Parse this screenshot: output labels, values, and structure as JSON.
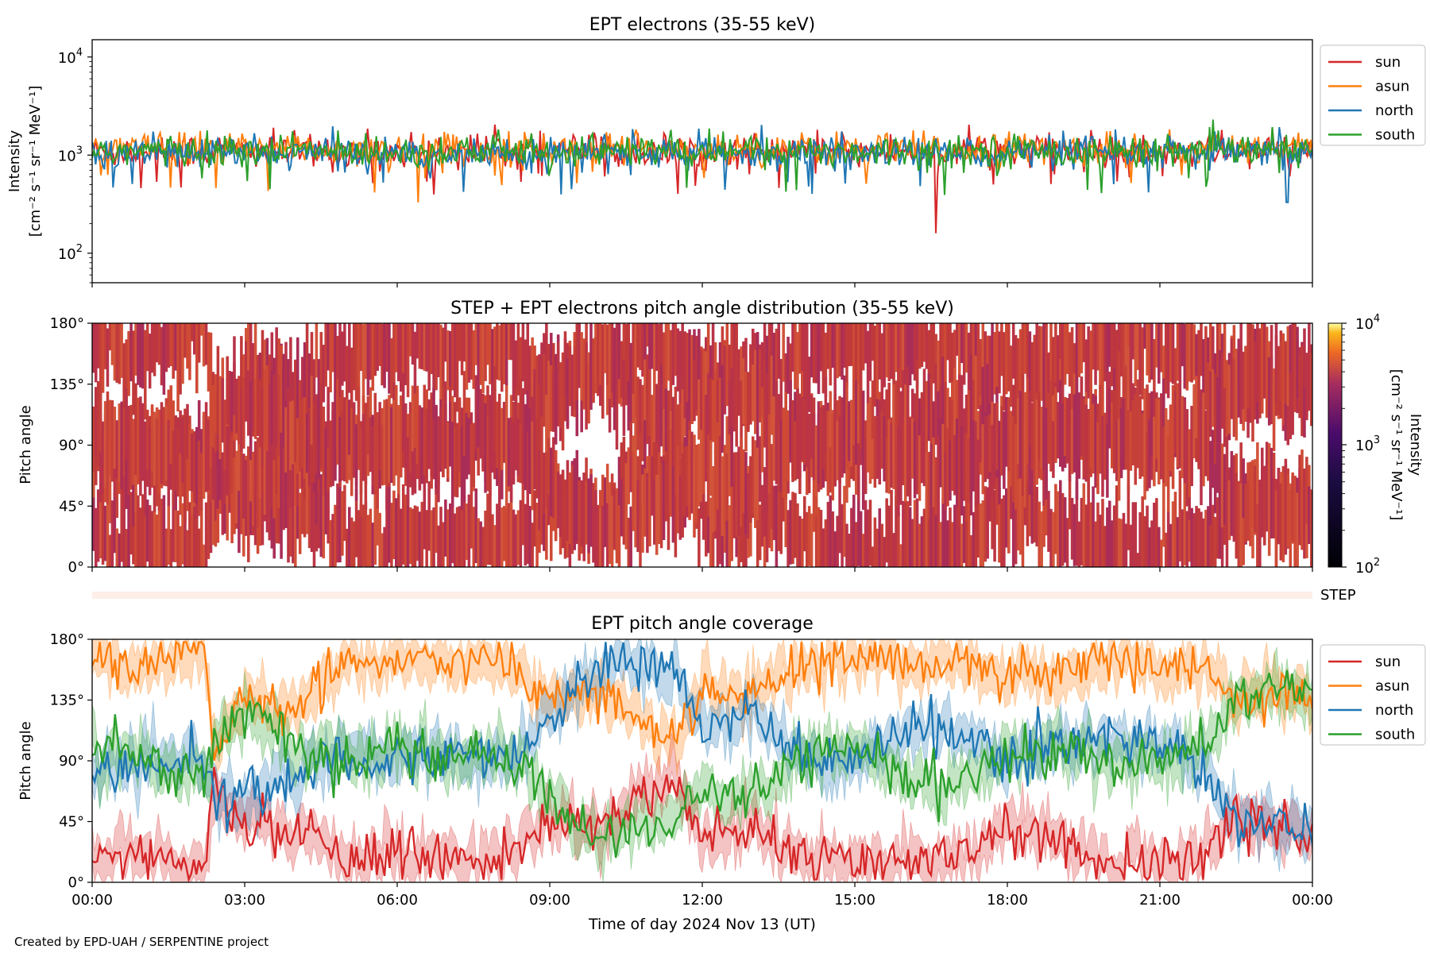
{
  "footer": {
    "credit": "Created by EPD-UAH / SERPENTINE project"
  },
  "colors": {
    "sun": "#d62728",
    "asun": "#ff7f0e",
    "north": "#1f77b4",
    "south": "#2ca02c",
    "pad_fill": "#c0393b"
  },
  "chart_data": [
    {
      "type": "line",
      "title": "EPT electrons (35-55 keV)",
      "xlabel": "",
      "ylabel": "Intensity",
      "ylabel_units": "[cm⁻² s⁻¹ sr⁻¹ MeV⁻¹]",
      "yscale": "log",
      "ylim": [
        50,
        15000
      ],
      "yticks": [
        100,
        1000,
        10000
      ],
      "ytick_labels": [
        {
          "base": "10",
          "exp": "2"
        },
        {
          "base": "10",
          "exp": "3"
        },
        {
          "base": "10",
          "exp": "4"
        }
      ],
      "xlim_hours": [
        0,
        24
      ],
      "legend_location": "outside-right-top",
      "series": [
        {
          "name": "sun",
          "color": "#d62728",
          "typical_value": 1100,
          "scatter_decades": 0.15,
          "spikes": [
            {
              "x_hours": 16.6,
              "value": 160
            }
          ]
        },
        {
          "name": "asun",
          "color": "#ff7f0e",
          "typical_value": 1150,
          "scatter_decades": 0.14,
          "spikes": [
            {
              "x_hours": 6.4,
              "value": 330
            }
          ]
        },
        {
          "name": "north",
          "color": "#1f77b4",
          "typical_value": 1050,
          "scatter_decades": 0.14,
          "spikes": [
            {
              "x_hours": 23.5,
              "value": 330
            }
          ]
        },
        {
          "name": "south",
          "color": "#2ca02c",
          "typical_value": 1100,
          "scatter_decades": 0.14,
          "spikes": [
            {
              "x_hours": 3.5,
              "value": 450
            }
          ]
        }
      ]
    },
    {
      "type": "heatmap",
      "title": "STEP + EPT electrons pitch angle distribution (35-55 keV)",
      "xlabel": "",
      "ylabel": "Pitch angle",
      "ylim": [
        0,
        180
      ],
      "yticks": [
        0,
        45,
        90,
        135,
        180
      ],
      "ytick_labels": [
        "0°",
        "45°",
        "90°",
        "135°",
        "180°"
      ],
      "xlim_hours": [
        0,
        24
      ],
      "colorbar": {
        "scale": "log",
        "range": [
          100,
          10000
        ],
        "label": "Intensity",
        "units": "[cm⁻² s⁻¹ sr⁻¹ MeV⁻¹]",
        "tick_labels": [
          {
            "base": "10",
            "exp": "4"
          },
          {
            "base": "10",
            "exp": "3"
          },
          {
            "base": "10",
            "exp": "2"
          }
        ],
        "colormap": "plasma-like"
      },
      "typical_intensity": 1000
    },
    {
      "type": "bar",
      "title": "",
      "label": "STEP",
      "xlim_hours": [
        0,
        24
      ],
      "color": "#fdeee8"
    },
    {
      "type": "line",
      "title": "EPT pitch angle coverage",
      "xlabel": "Time of day 2024 Nov 13 (UT)",
      "ylabel": "Pitch angle",
      "ylim": [
        0,
        180
      ],
      "yticks": [
        0,
        45,
        90,
        135,
        180
      ],
      "ytick_labels": [
        "0°",
        "45°",
        "90°",
        "135°",
        "180°"
      ],
      "xlim_hours": [
        0,
        24
      ],
      "xticks_hours": [
        0,
        3,
        6,
        9,
        12,
        15,
        18,
        21,
        24
      ],
      "xtick_labels": [
        "00:00",
        "03:00",
        "06:00",
        "09:00",
        "12:00",
        "15:00",
        "18:00",
        "21:00",
        "00:00"
      ],
      "legend_location": "outside-right-top",
      "band_halfwidth_deg": 14,
      "x_hours": [
        0,
        1,
        2,
        2.2,
        2.4,
        3,
        4,
        5,
        6,
        7,
        8,
        8.5,
        9,
        10,
        11,
        11.5,
        12,
        13,
        14,
        15,
        16,
        17,
        18,
        19,
        20,
        21,
        21.8,
        22.5,
        23,
        24
      ],
      "series": [
        {
          "name": "sun",
          "color": "#d62728",
          "values": [
            18,
            22,
            12,
            8,
            65,
            42,
            38,
            18,
            22,
            20,
            18,
            28,
            45,
            40,
            70,
            75,
            35,
            40,
            20,
            15,
            18,
            15,
            40,
            30,
            15,
            15,
            20,
            45,
            45,
            35
          ]
        },
        {
          "name": "asun",
          "color": "#ff7f0e",
          "values": [
            165,
            160,
            172,
            175,
            100,
            140,
            130,
            160,
            165,
            160,
            165,
            150,
            135,
            145,
            110,
            105,
            145,
            140,
            160,
            168,
            162,
            165,
            150,
            155,
            165,
            160,
            160,
            135,
            140,
            140
          ]
        },
        {
          "name": "north",
          "color": "#1f77b4",
          "values": [
            80,
            85,
            90,
            95,
            70,
            60,
            80,
            95,
            90,
            95,
            90,
            100,
            125,
            160,
            165,
            160,
            115,
            125,
            90,
            90,
            110,
            115,
            90,
            100,
            110,
            100,
            90,
            45,
            45,
            40
          ]
        },
        {
          "name": "south",
          "color": "#2ca02c",
          "values": [
            100,
            90,
            80,
            80,
            110,
            125,
            100,
            90,
            95,
            90,
            95,
            85,
            60,
            30,
            40,
            50,
            70,
            60,
            95,
            100,
            75,
            70,
            95,
            100,
            90,
            90,
            100,
            135,
            140,
            140
          ]
        }
      ]
    }
  ]
}
